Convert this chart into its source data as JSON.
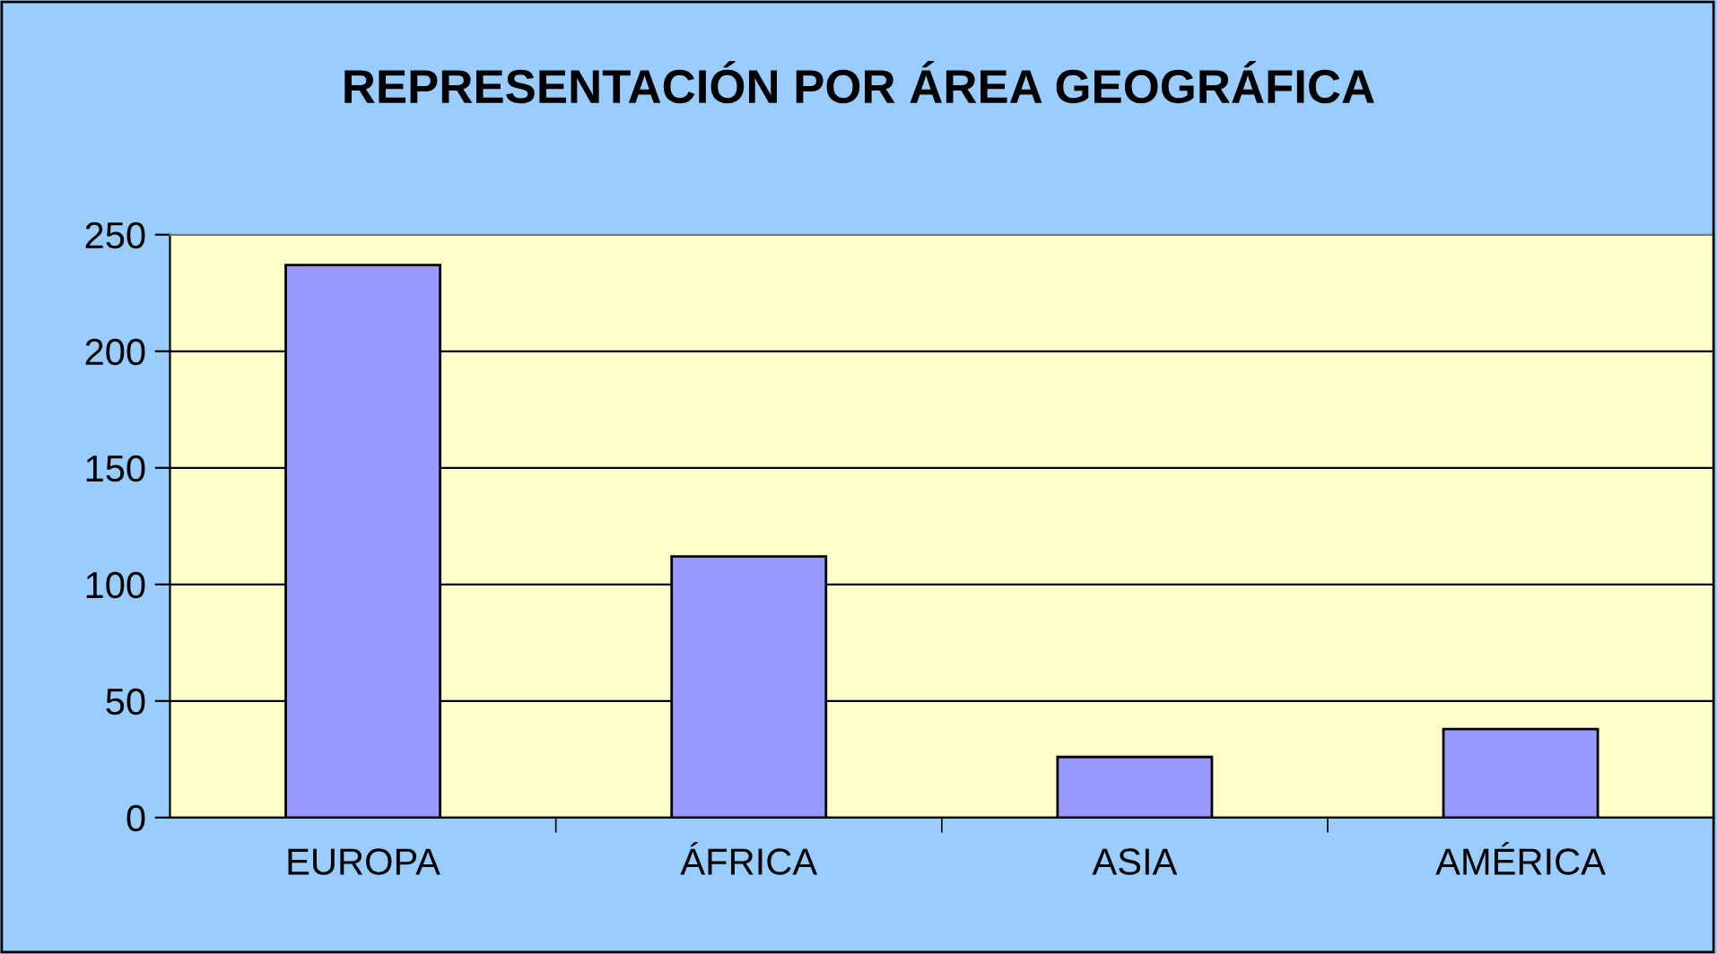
{
  "chart_data": {
    "type": "bar",
    "title": "REPRESENTACIÓN POR ÁREA GEOGRÁFICA",
    "categories": [
      "EUROPA",
      "ÁFRICA",
      "ASIA",
      "AMÉRICA"
    ],
    "values": [
      237,
      112,
      26,
      38
    ],
    "color": "#9999ff",
    "ylim": [
      0,
      250
    ],
    "yticks": [
      0,
      50,
      100,
      150,
      200,
      250
    ],
    "grid": "y",
    "legend": false
  }
}
